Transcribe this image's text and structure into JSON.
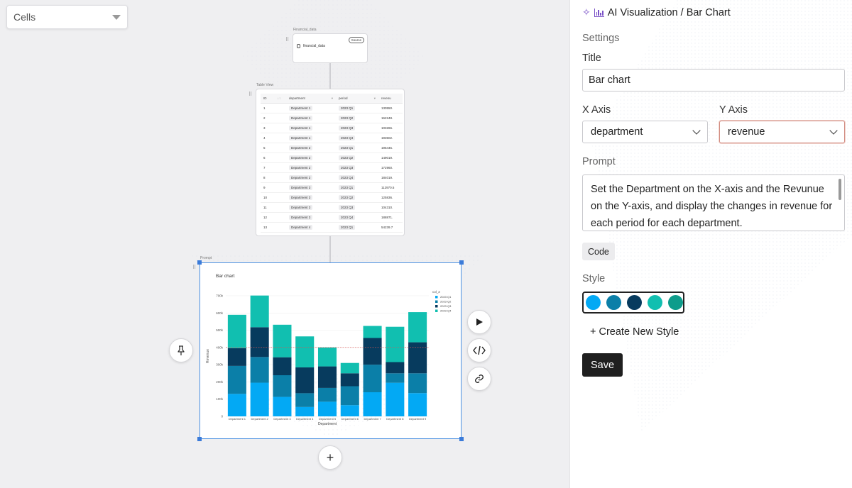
{
  "canvas": {
    "cells_select": {
      "value": "Cells"
    },
    "source_node": {
      "label": "Financial_data",
      "badge": "Source",
      "name": "financial_data"
    },
    "table_node": {
      "label": "Table View",
      "columns": [
        "ID",
        "department",
        "period",
        "revenu"
      ],
      "rows": [
        [
          "1",
          "Department 1",
          "2023 Q1",
          "130550."
        ],
        [
          "2",
          "Department 1",
          "2023 Q2",
          "162248."
        ],
        [
          "3",
          "Department 1",
          "2023 Q3",
          "103266."
        ],
        [
          "4",
          "Department 1",
          "2023 Q4",
          "193502."
        ],
        [
          "5",
          "Department 2",
          "2023 Q1",
          "195445."
        ],
        [
          "6",
          "Department 2",
          "2023 Q2",
          "149019."
        ],
        [
          "7",
          "Department 2",
          "2023 Q3",
          "172960."
        ],
        [
          "8",
          "Department 2",
          "2023 Q4",
          "184019."
        ],
        [
          "9",
          "Department 3",
          "2023 Q1",
          "112970.5"
        ],
        [
          "10",
          "Department 3",
          "2023 Q2",
          "125836."
        ],
        [
          "11",
          "Department 3",
          "2023 Q3",
          "104310."
        ],
        [
          "12",
          "Department 3",
          "2023 Q4",
          "188871."
        ],
        [
          "13",
          "Department 4",
          "2023 Q1",
          "54239.7"
        ]
      ]
    },
    "prompt_node": {
      "label": "Prompt"
    },
    "buttons": {
      "add": "+"
    }
  },
  "chart_data": {
    "type": "bar",
    "stacked": true,
    "title": "Bar chart",
    "xlabel": "Department",
    "ylabel": "Revenue",
    "ylim": [
      0,
      700000
    ],
    "yticks": [
      0,
      100000,
      200000,
      300000,
      400000,
      500000,
      600000,
      700000
    ],
    "ytick_labels": [
      "0",
      "100k",
      "200k",
      "300k",
      "400k",
      "500k",
      "600k",
      "700k"
    ],
    "categories": [
      "Department 1",
      "Department 2",
      "Department 3",
      "Department 4",
      "Department 5",
      "Department 6",
      "Department 7",
      "Department 8",
      "Department 9"
    ],
    "legend_title": "col_2",
    "legend_position": "top-right",
    "reference_line": 400000,
    "series": [
      {
        "name": "2023 Q1",
        "color": "#03a9f4",
        "values": [
          130550,
          195445,
          112970,
          54240,
          85000,
          65000,
          140000,
          195000,
          135000
        ]
      },
      {
        "name": "2023 Q2",
        "color": "#0b7fa8",
        "values": [
          162248,
          149019,
          125836,
          80000,
          80000,
          110000,
          160000,
          55000,
          115000
        ]
      },
      {
        "name": "2023 Q3",
        "color": "#073b5e",
        "values": [
          103266,
          172960,
          104310,
          150000,
          125000,
          75000,
          155000,
          65000,
          180000
        ]
      },
      {
        "name": "2023 Q4",
        "color": "#11bfb0",
        "values": [
          193502,
          184019,
          188871,
          180000,
          110000,
          60000,
          70000,
          205000,
          175000
        ]
      }
    ]
  },
  "panel": {
    "title": "AI Visualization / Bar Chart",
    "settings_label": "Settings",
    "title_label": "Title",
    "title_value": "Bar chart",
    "x_axis_label": "X Axis",
    "x_axis_value": "department",
    "y_axis_label": "Y Axis",
    "y_axis_value": "revenue",
    "prompt_label": "Prompt",
    "prompt_text": "Set the Department on the X-axis and the Revunue on the Y-axis, and display the changes in revenue for each period for each department.",
    "code_label": "Code",
    "style_label": "Style",
    "style_colors": [
      "#03a9f4",
      "#0b7fa8",
      "#073b5e",
      "#11bfb0",
      "#0e9c8b"
    ],
    "create_style_label": "+ Create New Style",
    "save_label": "Save"
  }
}
